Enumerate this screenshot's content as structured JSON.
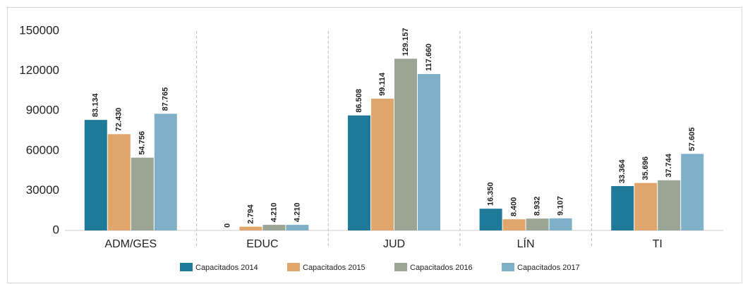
{
  "chart_data": {
    "type": "bar",
    "categories": [
      "ADM/GES",
      "EDUC",
      "JUD",
      "LÍN",
      "TI"
    ],
    "series": [
      {
        "name": "Capacitados 2014",
        "color": "#1f7a99",
        "values": [
          83134,
          0,
          86508,
          16350,
          33364
        ],
        "value_labels": [
          "83.134",
          "0",
          "86.508",
          "16.350",
          "33.364"
        ]
      },
      {
        "name": "Capacitados 2015",
        "color": "#e0a66b",
        "values": [
          72430,
          2794,
          99114,
          8400,
          35696
        ],
        "value_labels": [
          "72.430",
          "2.794",
          "99.114",
          "8.400",
          "35.696"
        ]
      },
      {
        "name": "Capacitados 2016",
        "color": "#9ba594",
        "values": [
          54756,
          4210,
          129157,
          8932,
          37744
        ],
        "value_labels": [
          "54.756",
          "4.210",
          "129.157",
          "8.932",
          "37.744"
        ]
      },
      {
        "name": "Capacitados 2017",
        "color": "#7fb0c7",
        "values": [
          87765,
          4210,
          117660,
          9107,
          57605
        ],
        "value_labels": [
          "87.765",
          "4.210",
          "117.660",
          "9.107",
          "57.605"
        ]
      }
    ],
    "ylim": [
      0,
      150000
    ],
    "yticks": [
      0,
      30000,
      60000,
      90000,
      120000,
      150000
    ],
    "grid": false
  }
}
